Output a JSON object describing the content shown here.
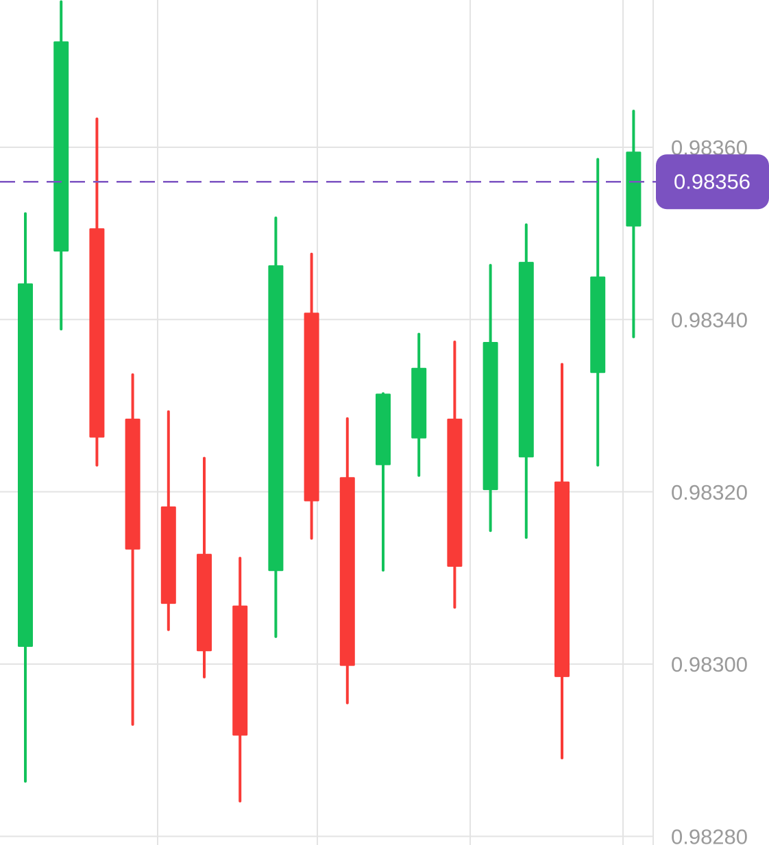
{
  "chart_data": {
    "type": "candlestick",
    "up_color": "#12c25a",
    "down_color": "#f93b37",
    "open": [
      0.98302,
      0.983479,
      0.983506,
      0.983285,
      0.983183,
      0.983128,
      0.983068,
      0.983108,
      0.983408,
      0.983217,
      0.983231,
      0.983262,
      0.983285,
      0.983202,
      0.98324,
      0.983212,
      0.983338,
      0.983508
    ],
    "high": [
      0.983523,
      0.983769,
      0.983633,
      0.983336,
      0.983293,
      0.983239,
      0.983123,
      0.983518,
      0.983476,
      0.983285,
      0.983314,
      0.983383,
      0.983374,
      0.983463,
      0.98351,
      0.983348,
      0.983586,
      0.983642
    ],
    "low": [
      0.982864,
      0.983389,
      0.983231,
      0.98293,
      0.98304,
      0.982985,
      0.982841,
      0.983032,
      0.983146,
      0.982955,
      0.983109,
      0.983219,
      0.983066,
      0.983155,
      0.983147,
      0.982891,
      0.983231,
      0.98338
    ],
    "close": [
      0.983442,
      0.983723,
      0.983263,
      0.983133,
      0.98307,
      0.983015,
      0.982917,
      0.983463,
      0.983189,
      0.982998,
      0.983314,
      0.983344,
      0.983113,
      0.983374,
      0.983467,
      0.982985,
      0.98345,
      0.983595
    ],
    "last_price": 0.98356,
    "last_price_color": "#7b52c1",
    "ylim": [
      0.98279,
      0.983771
    ],
    "yticks": [
      {
        "value": 0.9836,
        "label": "0.98360"
      },
      {
        "value": 0.9834,
        "label": "0.98340"
      },
      {
        "value": 0.9832,
        "label": "0.98320"
      },
      {
        "value": 0.983,
        "label": "0.98300"
      },
      {
        "value": 0.9828,
        "label": "0.98280"
      }
    ],
    "grid": true
  }
}
